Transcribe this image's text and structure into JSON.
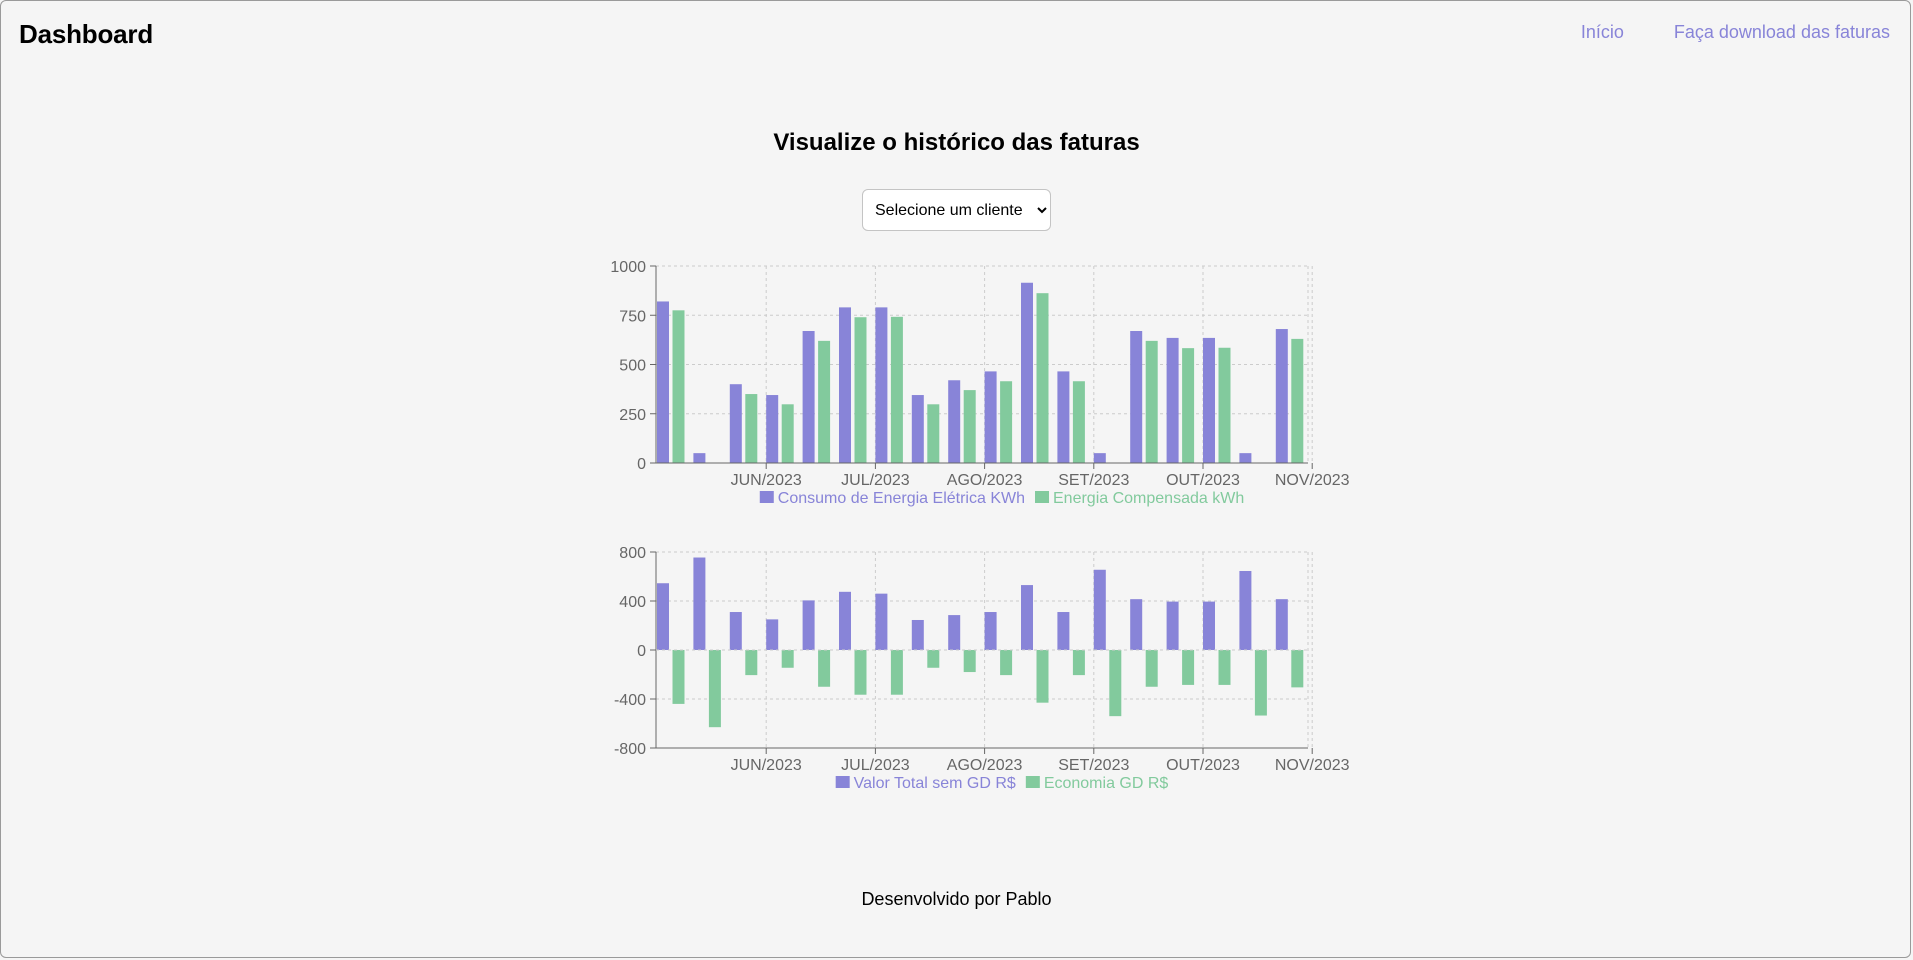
{
  "header": {
    "brand": "Dashboard",
    "nav": [
      {
        "label": "Início"
      },
      {
        "label": "Faça download das faturas"
      }
    ]
  },
  "main": {
    "title": "Visualize o histórico das faturas",
    "client_select": {
      "selected": "Selecione um cliente"
    }
  },
  "colors": {
    "series_a": "#8884d8",
    "series_b": "#82ca9d"
  },
  "chart_data": [
    {
      "type": "bar",
      "grid": true,
      "ylim": [
        0,
        1000
      ],
      "yticks": [
        0,
        250,
        500,
        750,
        1000
      ],
      "tick_labels": [
        "",
        "",
        "JUN/2023",
        "",
        "",
        "JUL/2023",
        "",
        "",
        "AGO/2023",
        "",
        "",
        "SET/2023",
        "",
        "",
        "OUT/2023",
        "",
        "",
        "NOV/2023"
      ],
      "legend_position": "bottom",
      "series": [
        {
          "name": "Consumo de Energia Elétrica KWh",
          "values": [
            820,
            50,
            400,
            345,
            670,
            790,
            790,
            345,
            420,
            465,
            915,
            465,
            50,
            670,
            635,
            635,
            50,
            680
          ]
        },
        {
          "name": "Energia Compensada kWh",
          "values": [
            775,
            0,
            350,
            298,
            620,
            740,
            742,
            298,
            370,
            415,
            862,
            415,
            0,
            620,
            583,
            585,
            0,
            630
          ]
        }
      ]
    },
    {
      "type": "bar",
      "grid": true,
      "ylim": [
        -800,
        800
      ],
      "yticks": [
        -800,
        -400,
        0,
        400,
        800
      ],
      "tick_labels": [
        "",
        "",
        "JUN/2023",
        "",
        "",
        "JUL/2023",
        "",
        "",
        "AGO/2023",
        "",
        "",
        "SET/2023",
        "",
        "",
        "OUT/2023",
        "",
        "",
        "NOV/2023"
      ],
      "legend_position": "bottom",
      "series": [
        {
          "name": "Valor Total sem GD R$",
          "values": [
            545,
            755,
            310,
            250,
            405,
            475,
            460,
            245,
            285,
            310,
            530,
            310,
            655,
            415,
            395,
            395,
            645,
            415
          ]
        },
        {
          "name": "Economia GD R$",
          "values": [
            -440,
            -630,
            -205,
            -145,
            -300,
            -365,
            -365,
            -145,
            -180,
            -205,
            -430,
            -205,
            -540,
            -300,
            -285,
            -285,
            -535,
            -305
          ]
        }
      ]
    }
  ],
  "footer": {
    "text": "Desenvolvido por Pablo"
  }
}
